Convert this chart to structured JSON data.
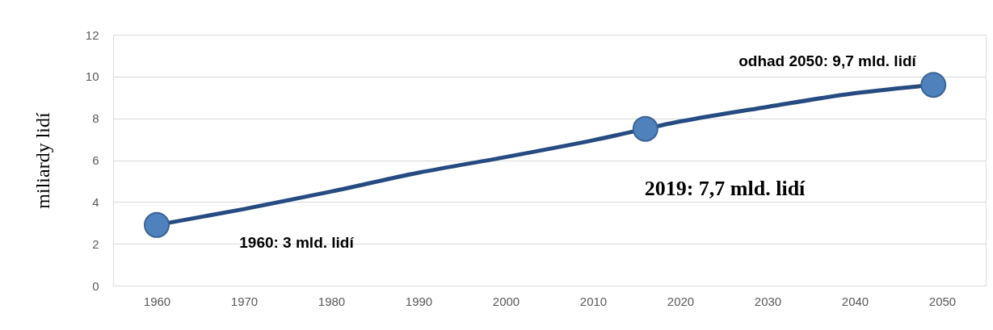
{
  "chart_data": {
    "type": "line",
    "ylabel": "miliardy lidí",
    "series": [
      {
        "color": "#254b80",
        "x": [
          1960,
          1970,
          1980,
          1990,
          2000,
          2010,
          2020,
          2030,
          2040,
          2049
        ],
        "values": [
          2.9,
          3.66,
          4.5,
          5.4,
          6.15,
          6.95,
          7.85,
          8.55,
          9.2,
          9.6
        ]
      },
      {
        "type": "scatter",
        "marker": "circle",
        "color": "#4f81bd",
        "x": [
          1960,
          2016,
          2049
        ],
        "values": [
          2.9,
          7.5,
          9.6
        ]
      }
    ],
    "xlim": [
      1955,
      2055
    ],
    "xticks": [
      1960,
      1970,
      1980,
      1990,
      2000,
      2010,
      2020,
      2030,
      2040,
      2050
    ],
    "ylim": [
      0,
      12
    ],
    "yticks": [
      0,
      2,
      4,
      6,
      8,
      10,
      12
    ],
    "grid": "y",
    "annotations": [
      "1960: 3 mld. lidí",
      "2019: 7,7 mld. lidí",
      "odhad 2050: 9,7 mld. lidí"
    ]
  }
}
